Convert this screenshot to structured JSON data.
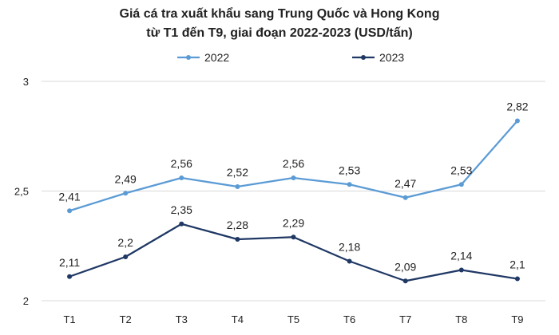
{
  "chart_data": {
    "type": "line",
    "title_line1": "Giá cá tra xuất khẩu sang Trung Quốc và Hong Kong",
    "title_line2": "từ T1 đến T9, giai đoạn 2022-2023 (USD/tấn)",
    "categories": [
      "T1",
      "T2",
      "T3",
      "T4",
      "T5",
      "T6",
      "T7",
      "T8",
      "T9"
    ],
    "series": [
      {
        "name": "2022",
        "color": "#5b9bd5",
        "values": [
          2.41,
          2.49,
          2.56,
          2.52,
          2.56,
          2.53,
          2.47,
          2.53,
          2.82
        ],
        "labels": [
          "2,41",
          "2,49",
          "2,56",
          "2,52",
          "2,56",
          "2,53",
          "2,47",
          "2,53",
          "2,82"
        ]
      },
      {
        "name": "2023",
        "color": "#1f3864",
        "values": [
          2.11,
          2.2,
          2.35,
          2.28,
          2.29,
          2.18,
          2.09,
          2.14,
          2.1
        ],
        "labels": [
          "2,11",
          "2,2",
          "2,35",
          "2,28",
          "2,29",
          "2,18",
          "2,09",
          "2,14",
          "2,1"
        ]
      }
    ],
    "ylim": [
      2,
      3
    ],
    "yticks": [
      2,
      2.5,
      3
    ],
    "ytick_labels": [
      "2",
      "2,5",
      "3"
    ],
    "grid": true,
    "legend": "top-center"
  }
}
